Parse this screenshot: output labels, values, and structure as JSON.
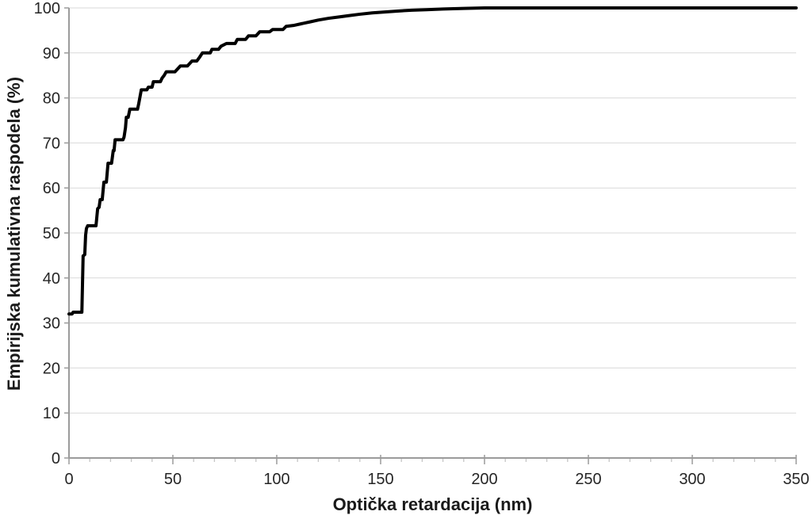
{
  "chart_data": {
    "type": "line",
    "subtype": "ecdf-step-curve",
    "xlabel": "Optička retardacija (nm)",
    "ylabel": "Empirijska kumulativna raspodela (%)",
    "xlim": [
      0,
      350
    ],
    "ylim": [
      0,
      100
    ],
    "x_major_ticks": [
      0,
      50,
      100,
      150,
      200,
      250,
      300,
      350
    ],
    "x_minor_step": 10,
    "y_ticks": [
      0,
      10,
      20,
      30,
      40,
      50,
      60,
      70,
      80,
      90,
      100
    ],
    "grid": "horizontal",
    "legend": "none",
    "colors": {
      "line": "#000000",
      "grid": "#d9d9d9",
      "axis": "#9b9b9b",
      "minor_tick": "#c6c6c6",
      "tick_label": "#262626"
    },
    "series": [
      {
        "name": "Empirijska kumulativna raspodela",
        "points": [
          [
            0,
            32.0
          ],
          [
            1.5,
            32.0
          ],
          [
            2,
            32.4
          ],
          [
            6.2,
            32.4
          ],
          [
            6.8,
            44.9
          ],
          [
            7.6,
            45.2
          ],
          [
            8.0,
            49.5
          ],
          [
            8.4,
            51.0
          ],
          [
            9.0,
            51.6
          ],
          [
            13.0,
            51.6
          ],
          [
            13.8,
            55.4
          ],
          [
            14.5,
            55.7
          ],
          [
            15.0,
            57.4
          ],
          [
            16.0,
            57.4
          ],
          [
            16.8,
            61.3
          ],
          [
            18.0,
            61.3
          ],
          [
            18.8,
            65.5
          ],
          [
            20.5,
            65.5
          ],
          [
            21.3,
            68.3
          ],
          [
            21.7,
            68.3
          ],
          [
            22.2,
            70.7
          ],
          [
            26.0,
            70.7
          ],
          [
            26.5,
            71.3
          ],
          [
            27.2,
            73.4
          ],
          [
            27.6,
            75.7
          ],
          [
            28.5,
            75.7
          ],
          [
            29.3,
            77.5
          ],
          [
            33.0,
            77.5
          ],
          [
            33.6,
            78.8
          ],
          [
            34.2,
            80.3
          ],
          [
            34.8,
            81.8
          ],
          [
            37.5,
            81.8
          ],
          [
            38.2,
            82.4
          ],
          [
            40.0,
            82.4
          ],
          [
            40.6,
            83.6
          ],
          [
            44.0,
            83.6
          ],
          [
            44.8,
            84.4
          ],
          [
            45.8,
            85.0
          ],
          [
            46.8,
            85.8
          ],
          [
            51.0,
            85.8
          ],
          [
            52.2,
            86.4
          ],
          [
            53.6,
            87.1
          ],
          [
            57.0,
            87.1
          ],
          [
            58.2,
            87.7
          ],
          [
            59.2,
            88.2
          ],
          [
            61.5,
            88.2
          ],
          [
            62.8,
            89.0
          ],
          [
            64.2,
            90.0
          ],
          [
            68.0,
            90.0
          ],
          [
            68.8,
            90.8
          ],
          [
            72.0,
            90.8
          ],
          [
            73.2,
            91.5
          ],
          [
            75.8,
            92.1
          ],
          [
            80.0,
            92.1
          ],
          [
            81.0,
            93.0
          ],
          [
            85.0,
            93.0
          ],
          [
            86.4,
            93.8
          ],
          [
            90.0,
            93.8
          ],
          [
            91.8,
            94.7
          ],
          [
            96.6,
            94.7
          ],
          [
            98.0,
            95.2
          ],
          [
            103.0,
            95.2
          ],
          [
            104.5,
            95.9
          ],
          [
            108.0,
            96.1
          ],
          [
            112.0,
            96.5
          ],
          [
            116.0,
            96.9
          ],
          [
            120.0,
            97.3
          ],
          [
            125.0,
            97.7
          ],
          [
            130.0,
            98.0
          ],
          [
            135.0,
            98.3
          ],
          [
            140.0,
            98.6
          ],
          [
            146.0,
            98.9
          ],
          [
            152.0,
            99.1
          ],
          [
            158.0,
            99.3
          ],
          [
            165.0,
            99.5
          ],
          [
            172.0,
            99.6
          ],
          [
            180.0,
            99.75
          ],
          [
            190.0,
            99.9
          ],
          [
            200.0,
            100.0
          ],
          [
            350.0,
            100.0
          ]
        ]
      }
    ]
  }
}
